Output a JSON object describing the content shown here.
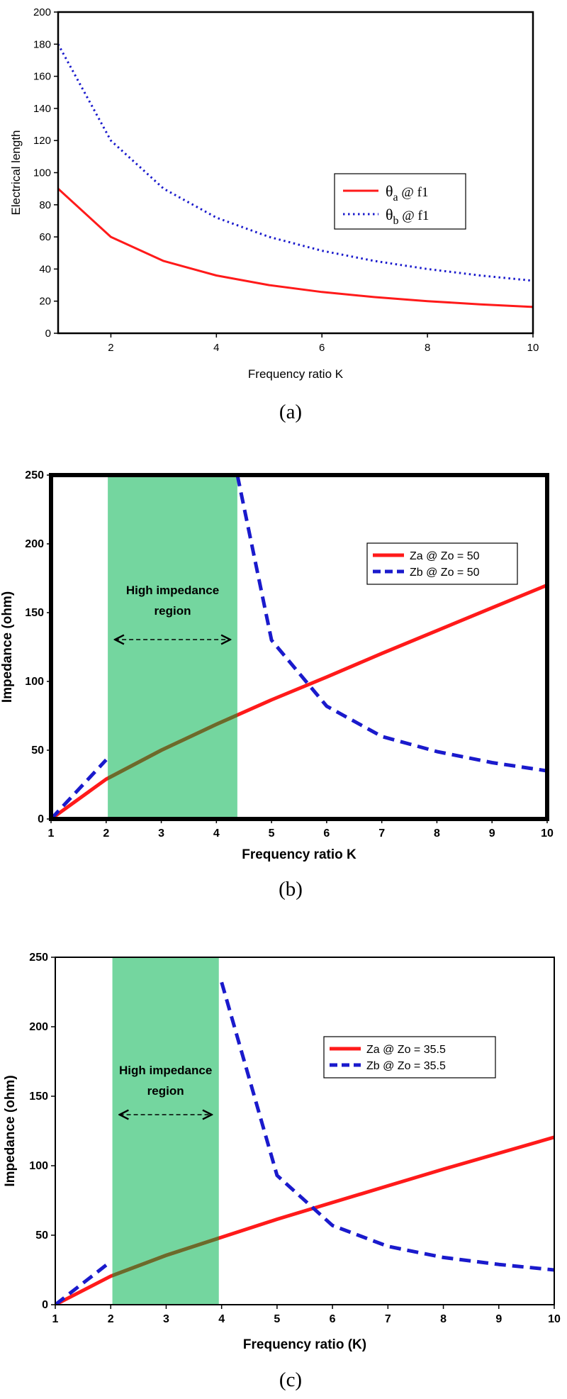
{
  "colors": {
    "red": "#ff1a1a",
    "blue": "#1a1acc",
    "green": "#5ccf8e",
    "black": "#000000"
  },
  "chart_data": [
    {
      "type": "line",
      "caption": "(a)",
      "xlabel": "Frequency ratio K",
      "ylabel": "Electrical length",
      "xlim": [
        1,
        10
      ],
      "ylim": [
        0,
        200
      ],
      "xticks": [
        2,
        4,
        6,
        8,
        10
      ],
      "yticks": [
        0,
        20,
        40,
        60,
        80,
        100,
        120,
        140,
        160,
        180,
        200
      ],
      "legend_position": "center-right",
      "series": [
        {
          "name": "θa @ f1",
          "legend_main": "θ",
          "legend_sub": "a",
          "legend_rest": " @ f1",
          "style": "solid",
          "color": "#ff1a1a",
          "x": [
            1,
            2,
            3,
            4,
            5,
            6,
            7,
            8,
            9,
            10
          ],
          "y": [
            90,
            60,
            45,
            36,
            30,
            25.7,
            22.5,
            20,
            18,
            16.4
          ]
        },
        {
          "name": "θb @ f1",
          "legend_main": "θ",
          "legend_sub": "b",
          "legend_rest": " @ f1",
          "style": "dotted",
          "color": "#1a1acc",
          "x": [
            1,
            2,
            3,
            4,
            5,
            6,
            7,
            8,
            9,
            10
          ],
          "y": [
            180,
            120,
            90,
            72,
            60,
            51.4,
            45,
            40,
            36,
            32.7
          ]
        }
      ]
    },
    {
      "type": "line",
      "caption": "(b)",
      "xlabel": "Frequency ratio K",
      "ylabel": "Impedance (ohm)",
      "xlim": [
        1,
        10
      ],
      "ylim": [
        0,
        250
      ],
      "xticks": [
        1,
        2,
        3,
        4,
        5,
        6,
        7,
        8,
        9,
        10
      ],
      "yticks": [
        0,
        50,
        100,
        150,
        200,
        250
      ],
      "legend_position": "upper-right",
      "region": {
        "x0": 2.03,
        "x1": 4.38,
        "label_line1": "High impedance",
        "label_line2": "region"
      },
      "series": [
        {
          "name": "Za @ Zo = 50",
          "style": "solid",
          "color": "#ff1a1a",
          "x": [
            1,
            2,
            3,
            4,
            5,
            6,
            7,
            8,
            9,
            10
          ],
          "y": [
            0,
            28.9,
            50,
            68.8,
            86.6,
            103.2,
            120.3,
            136.9,
            153.5,
            170
          ]
        },
        {
          "name": "Zb @ Zo = 50",
          "style": "dashed",
          "color": "#1a1acc",
          "segments": [
            {
              "x": [
                1,
                2
              ],
              "y": [
                0,
                43
              ]
            },
            {
              "x": [
                4.38,
                5,
                6,
                7,
                8,
                9,
                10
              ],
              "y": [
                250,
                130,
                82,
                60,
                49,
                41,
                35
              ]
            }
          ]
        }
      ]
    },
    {
      "type": "line",
      "caption": "(c)",
      "xlabel": "Frequency ratio (K)",
      "ylabel": "Impedance (ohm)",
      "xlim": [
        1,
        10
      ],
      "ylim": [
        0,
        250
      ],
      "xticks": [
        1,
        2,
        3,
        4,
        5,
        6,
        7,
        8,
        9,
        10
      ],
      "yticks": [
        0,
        50,
        100,
        150,
        200,
        250
      ],
      "legend_position": "upper-right",
      "region": {
        "x0": 2.03,
        "x1": 3.95,
        "label_line1": "High impedance",
        "label_line2": "region"
      },
      "series": [
        {
          "name": "Za @ Zo = 35.5",
          "style": "solid",
          "color": "#ff1a1a",
          "x": [
            1,
            2,
            3,
            4,
            5,
            6,
            7,
            8,
            9,
            10
          ],
          "y": [
            0,
            20.5,
            35.5,
            48.5,
            61.5,
            73.5,
            85.5,
            97.5,
            109,
            120.5
          ]
        },
        {
          "name": "Zb @ Zo = 35.5",
          "style": "dashed",
          "color": "#1a1acc",
          "segments": [
            {
              "x": [
                1,
                2
              ],
              "y": [
                0,
                31
              ]
            },
            {
              "x": [
                4,
                5,
                6,
                7,
                8,
                9,
                10
              ],
              "y": [
                232,
                93,
                57,
                42,
                34,
                29,
                25
              ]
            }
          ]
        }
      ]
    }
  ]
}
